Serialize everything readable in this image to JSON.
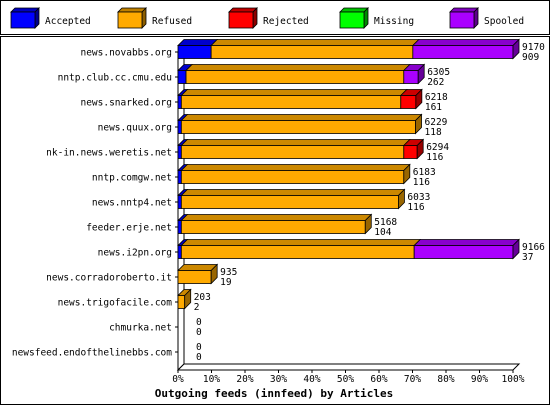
{
  "chart_data": {
    "type": "bar",
    "orientation": "horizontal",
    "stacked": true,
    "title": "Outgoing feeds (innfeed) by Articles",
    "legend_position": "top",
    "xlim": [
      0,
      100
    ],
    "x_ticks": [
      "0%",
      "10%",
      "20%",
      "30%",
      "40%",
      "50%",
      "60%",
      "70%",
      "80%",
      "90%",
      "100%"
    ],
    "series": [
      {
        "name": "Accepted",
        "color": "#0000ff"
      },
      {
        "name": "Refused",
        "color": "#ffaa00"
      },
      {
        "name": "Rejected",
        "color": "#ff0000"
      },
      {
        "name": "Missing",
        "color": "#00ff00"
      },
      {
        "name": "Spooled",
        "color": "#aa00ff"
      }
    ],
    "rows": [
      {
        "label": "news.novabbs.org",
        "total": "9170",
        "spooled_label": "909",
        "segments": [
          9.9,
          60.2,
          0,
          0,
          29.9
        ]
      },
      {
        "label": "nntp.club.cc.cmu.edu",
        "total": "6305",
        "spooled_label": "262",
        "segments": [
          2.4,
          65.0,
          0,
          0,
          4.3
        ]
      },
      {
        "label": "news.snarked.org",
        "total": "6218",
        "spooled_label": "161",
        "segments": [
          1.0,
          65.5,
          4.5,
          0,
          0
        ]
      },
      {
        "label": "news.quux.org",
        "total": "6229",
        "spooled_label": "118",
        "segments": [
          1.0,
          69.9,
          0,
          0,
          0
        ]
      },
      {
        "label": "nk-in.news.weretis.net",
        "total": "6294",
        "spooled_label": "116",
        "segments": [
          1.0,
          66.4,
          4.0,
          0,
          0
        ]
      },
      {
        "label": "nntp.comgw.net",
        "total": "6183",
        "spooled_label": "116",
        "segments": [
          1.0,
          66.4,
          0,
          0,
          0
        ]
      },
      {
        "label": "news.nntp4.net",
        "total": "6033",
        "spooled_label": "116",
        "segments": [
          1.0,
          64.8,
          0,
          0,
          0
        ]
      },
      {
        "label": "feeder.erje.net",
        "total": "5168",
        "spooled_label": "104",
        "segments": [
          1.0,
          54.9,
          0,
          0,
          0
        ]
      },
      {
        "label": "news.i2pn.org",
        "total": "9166",
        "spooled_label": "37",
        "segments": [
          1.0,
          69.5,
          0,
          0,
          29.5
        ]
      },
      {
        "label": "news.corradoroberto.it",
        "total": "935",
        "spooled_label": "19",
        "segments": [
          0,
          9.9,
          0,
          0,
          0
        ]
      },
      {
        "label": "news.trigofacile.com",
        "total": "203",
        "spooled_label": "2",
        "segments": [
          0,
          2.0,
          0,
          0,
          0
        ]
      },
      {
        "label": "chmurka.net",
        "total": "0",
        "spooled_label": "0",
        "segments": [
          0,
          0,
          0,
          0,
          0
        ]
      },
      {
        "label": "newsfeed.endofthelinebbs.com",
        "total": "0",
        "spooled_label": "0",
        "segments": [
          0,
          0,
          0,
          0,
          0
        ]
      }
    ]
  }
}
